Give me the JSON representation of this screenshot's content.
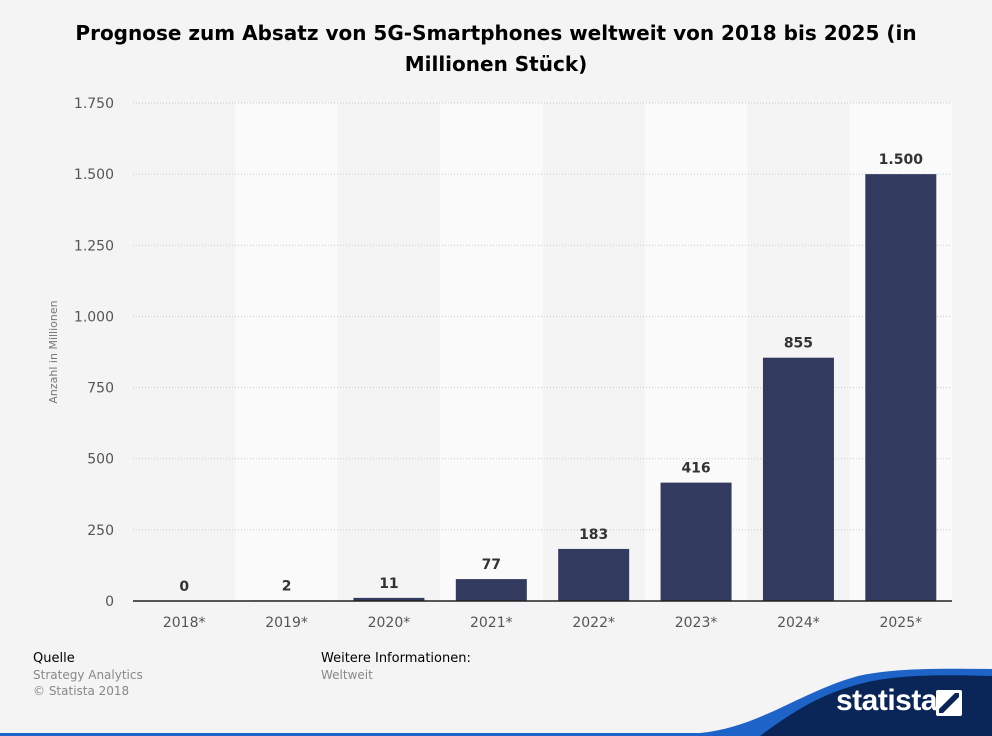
{
  "chart_data": {
    "type": "bar",
    "title": "Prognose zum Absatz von 5G-Smartphones weltweit von 2018 bis 2025 (in Millionen Stück)",
    "ylabel": "Anzahl in Millionen",
    "xlabel": "",
    "ylim": [
      0,
      1750
    ],
    "yticks": [
      0,
      250,
      500,
      750,
      1000,
      1250,
      1500,
      1750
    ],
    "ytick_labels": [
      "0",
      "250",
      "500",
      "750",
      "1.000",
      "1.250",
      "1.500",
      "1.750"
    ],
    "categories": [
      "2018*",
      "2019*",
      "2020*",
      "2021*",
      "2022*",
      "2023*",
      "2024*",
      "2025*"
    ],
    "values": [
      0,
      2,
      11,
      77,
      183,
      416,
      855,
      1500
    ],
    "value_labels": [
      "0",
      "2",
      "11",
      "77",
      "183",
      "416",
      "855",
      "1.500"
    ],
    "bar_color": "#323a5f",
    "grid": true,
    "legend": "none"
  },
  "footer": {
    "source_heading": "Quelle",
    "source_name": "Strategy Analytics",
    "copyright": "© Statista 2018",
    "info_heading": "Weitere Informationen:",
    "info_value": "Weltweit"
  },
  "brand": {
    "logo_text": "statista",
    "logo_icon": "statista-logo-icon",
    "wave_color": "#0a2557",
    "accent_color": "#1e64c8"
  }
}
